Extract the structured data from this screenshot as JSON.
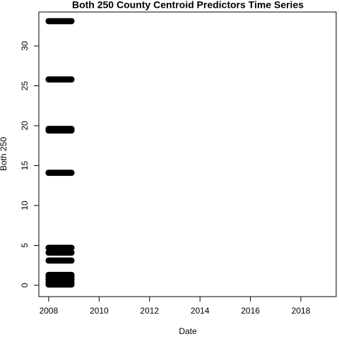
{
  "chart_data": {
    "type": "scatter",
    "title": "Both 250 County Centroid Predictors Time Series",
    "xlabel": "Date",
    "ylabel": "Both 250",
    "xlim": [
      2007.61,
      2019.4
    ],
    "xticks": [
      2008,
      2010,
      2012,
      2014,
      2016,
      2018
    ],
    "ylim": [
      -1.42,
      34.25
    ],
    "yticks": [
      0,
      5,
      10,
      15,
      20,
      25,
      30
    ],
    "color": "#000000",
    "x": [
      2008,
      2008.1,
      2008.2,
      2008.3,
      2008.4,
      2008.5,
      2008.6,
      2008.7,
      2008.8,
      2008.9,
      2008,
      2008.1,
      2008.2,
      2008.3,
      2008.4,
      2008.5,
      2008.6,
      2008.7,
      2008.8,
      2008.9,
      2008,
      2008.1,
      2008.2,
      2008.3,
      2008.4,
      2008.5,
      2008.6,
      2008.7,
      2008.8,
      2008.9,
      2008,
      2008.1,
      2008.2,
      2008.3,
      2008.4,
      2008.5,
      2008.6,
      2008.7,
      2008.8,
      2008.9,
      2008,
      2008.1,
      2008.2,
      2008.3,
      2008.4,
      2008.5,
      2008.6,
      2008.7,
      2008.8,
      2008.9,
      2008,
      2008.1,
      2008.2,
      2008.3,
      2008.4,
      2008.5,
      2008.6,
      2008.7,
      2008.8,
      2008.9,
      2008,
      2008.1,
      2008.2,
      2008.3,
      2008.4,
      2008.5,
      2008.6,
      2008.7,
      2008.8,
      2008.9,
      2008,
      2008.1,
      2008.2,
      2008.3,
      2008.4,
      2008.5,
      2008.6,
      2008.7,
      2008.8,
      2008.9,
      2008,
      2008.1,
      2008.2,
      2008.3,
      2008.4,
      2008.5,
      2008.6,
      2008.7,
      2008.8,
      2008.9,
      2008,
      2008.1,
      2008.2,
      2008.3,
      2008.4,
      2008.5,
      2008.6,
      2008.7,
      2008.8,
      2008.9,
      2008,
      2008.1,
      2008.2,
      2008.3,
      2008.4,
      2008.5,
      2008.6,
      2008.7,
      2008.8,
      2008.9,
      2008,
      2008.1,
      2008.2,
      2008.3,
      2008.4,
      2008.5,
      2008.6,
      2008.7,
      2008.8,
      2008.9,
      2008,
      2008.1,
      2008.2,
      2008.3,
      2008.4,
      2008.5,
      2008.6,
      2008.7,
      2008.8,
      2008.9
    ],
    "y": [
      33.1,
      33.1,
      33.1,
      33.1,
      33.1,
      33.1,
      33.1,
      33.1,
      33.1,
      33.1,
      25.8,
      25.8,
      25.8,
      25.8,
      25.8,
      25.8,
      25.8,
      25.8,
      25.8,
      25.8,
      19.6,
      19.6,
      19.6,
      19.6,
      19.6,
      19.6,
      19.6,
      19.6,
      19.6,
      19.6,
      19.4,
      19.4,
      19.4,
      19.4,
      19.4,
      19.4,
      19.4,
      19.4,
      19.4,
      19.4,
      14.1,
      14.1,
      14.1,
      14.1,
      14.1,
      14.1,
      14.1,
      14.1,
      14.1,
      14.1,
      4.7,
      4.7,
      4.7,
      4.7,
      4.7,
      4.7,
      4.7,
      4.7,
      4.7,
      4.7,
      4.1,
      4.1,
      4.1,
      4.1,
      4.1,
      4.1,
      4.1,
      4.1,
      4.1,
      4.1,
      3.1,
      3.1,
      3.1,
      3.1,
      3.1,
      3.1,
      3.1,
      3.1,
      3.1,
      3.1,
      1.3,
      1.3,
      1.3,
      1.3,
      1.3,
      1.3,
      1.3,
      1.3,
      1.3,
      1.3,
      1,
      1,
      1,
      1,
      1,
      1,
      1,
      1,
      1,
      1,
      0.7,
      0.7,
      0.7,
      0.7,
      0.7,
      0.7,
      0.7,
      0.7,
      0.7,
      0.7,
      0.4,
      0.4,
      0.4,
      0.4,
      0.4,
      0.4,
      0.4,
      0.4,
      0.4,
      0.4,
      0.1,
      0.1,
      0.1,
      0.1,
      0.1,
      0.1,
      0.1,
      0.1,
      0.1,
      0.1
    ]
  }
}
